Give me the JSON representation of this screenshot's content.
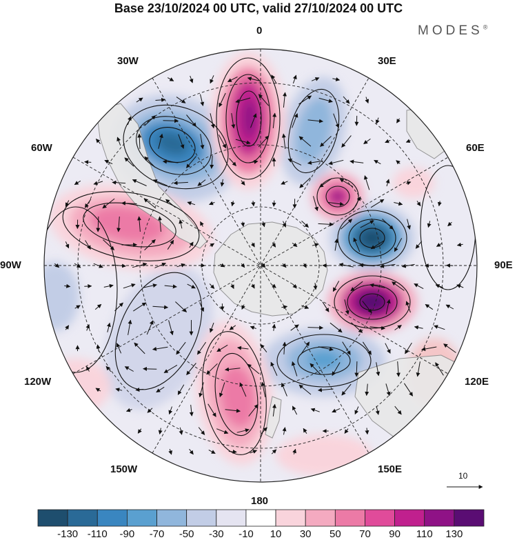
{
  "title": "Base 23/10/2024 00 UTC, valid 27/10/2024 00 UTC",
  "brand": "MODES",
  "brand_mark": "®",
  "map": {
    "projection": "south polar stereographic",
    "lon_labels": {
      "top": "0",
      "top_right": "30E",
      "right_upper": "60E",
      "right": "90E",
      "right_lower": "120E",
      "bottom_right": "150E",
      "bottom": "180",
      "bottom_left": "150W",
      "left_lower": "120W",
      "left": "90W",
      "left_upper": "60W",
      "top_left": "30W"
    },
    "vector_scale_label": "10"
  },
  "colorbar": {
    "colors": [
      "#1e4e6e",
      "#2a6a97",
      "#3a86c0",
      "#5aa0d0",
      "#90b6dc",
      "#c2cde6",
      "#e5e4f1",
      "#ffffff",
      "#f9d4dc",
      "#f4aac0",
      "#ec7aa6",
      "#e04b9a",
      "#c0208e",
      "#8f1286",
      "#5a0d73"
    ],
    "labels": [
      "-130",
      "-110",
      "-90",
      "-70",
      "-50",
      "-30",
      "-10",
      "10",
      "30",
      "50",
      "70",
      "90",
      "110",
      "130"
    ]
  },
  "colors": {
    "land": "#e8e8e8",
    "coast": "#888888",
    "grid": "#222222"
  }
}
